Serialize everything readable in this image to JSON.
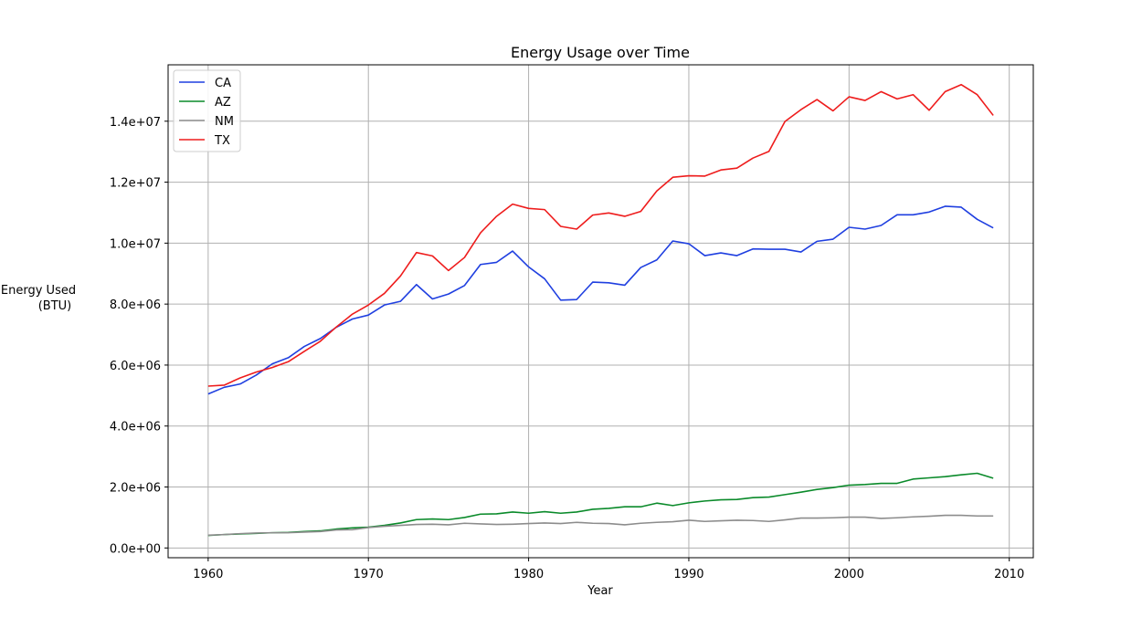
{
  "chart_data": {
    "type": "line",
    "title": "Energy Usage over Time",
    "xlabel": "Year",
    "ylabel_line1": "Energy Used",
    "ylabel_line2": "(BTU)",
    "xlim": [
      1957.5,
      2011.5
    ],
    "ylim": [
      -320000,
      15850000
    ],
    "xticks": [
      1960,
      1970,
      1980,
      1990,
      2000,
      2010
    ],
    "xtick_labels": [
      "1960",
      "1970",
      "1980",
      "1990",
      "2000",
      "2010"
    ],
    "yticks": [
      0,
      2000000,
      4000000,
      6000000,
      8000000,
      10000000,
      12000000,
      14000000
    ],
    "ytick_labels": [
      "0.0e+00",
      "2.0e+06",
      "4.0e+06",
      "6.0e+06",
      "8.0e+06",
      "1.0e+07",
      "1.2e+07",
      "1.4e+07"
    ],
    "grid": true,
    "legend_position": "top-left",
    "x": [
      1960,
      1961,
      1962,
      1963,
      1964,
      1965,
      1966,
      1967,
      1968,
      1969,
      1970,
      1971,
      1972,
      1973,
      1974,
      1975,
      1976,
      1977,
      1978,
      1979,
      1980,
      1981,
      1982,
      1983,
      1984,
      1985,
      1986,
      1987,
      1988,
      1989,
      1990,
      1991,
      1992,
      1993,
      1994,
      1995,
      1996,
      1997,
      1998,
      1999,
      2000,
      2001,
      2002,
      2003,
      2004,
      2005,
      2006,
      2007,
      2008,
      2009
    ],
    "series": [
      {
        "name": "CA",
        "color": "#1f3fe0",
        "values": [
          5050000,
          5270000,
          5380000,
          5670000,
          6040000,
          6240000,
          6610000,
          6870000,
          7240000,
          7510000,
          7640000,
          7970000,
          8090000,
          8640000,
          8170000,
          8330000,
          8610000,
          9300000,
          9370000,
          9740000,
          9220000,
          8830000,
          8130000,
          8150000,
          8720000,
          8700000,
          8620000,
          9200000,
          9450000,
          10070000,
          9980000,
          9590000,
          9680000,
          9590000,
          9810000,
          9800000,
          9800000,
          9710000,
          10060000,
          10130000,
          10520000,
          10460000,
          10580000,
          10930000,
          10930000,
          11020000,
          11210000,
          11180000,
          10780000,
          10500000
        ]
      },
      {
        "name": "AZ",
        "color": "#0a8a2a",
        "values": [
          410000,
          440000,
          460000,
          480000,
          500000,
          510000,
          540000,
          560000,
          620000,
          660000,
          680000,
          740000,
          820000,
          930000,
          950000,
          930000,
          1000000,
          1110000,
          1120000,
          1180000,
          1140000,
          1190000,
          1140000,
          1180000,
          1270000,
          1300000,
          1350000,
          1350000,
          1470000,
          1390000,
          1480000,
          1540000,
          1580000,
          1590000,
          1650000,
          1670000,
          1750000,
          1830000,
          1920000,
          1980000,
          2060000,
          2080000,
          2120000,
          2120000,
          2260000,
          2300000,
          2340000,
          2400000,
          2450000,
          2290000
        ]
      },
      {
        "name": "NM",
        "color": "#8c8c8c",
        "values": [
          420000,
          440000,
          470000,
          490000,
          500000,
          500000,
          520000,
          540000,
          590000,
          600000,
          670000,
          710000,
          740000,
          770000,
          780000,
          760000,
          810000,
          790000,
          770000,
          780000,
          800000,
          820000,
          800000,
          840000,
          810000,
          800000,
          760000,
          810000,
          840000,
          860000,
          910000,
          870000,
          890000,
          910000,
          900000,
          870000,
          920000,
          980000,
          980000,
          990000,
          1010000,
          1010000,
          970000,
          990000,
          1020000,
          1040000,
          1070000,
          1070000,
          1050000,
          1050000
        ]
      },
      {
        "name": "TX",
        "color": "#ee1c1c",
        "values": [
          5310000,
          5340000,
          5580000,
          5770000,
          5920000,
          6110000,
          6450000,
          6780000,
          7250000,
          7670000,
          7970000,
          8350000,
          8920000,
          9690000,
          9580000,
          9100000,
          9530000,
          10340000,
          10880000,
          11280000,
          11140000,
          11100000,
          10550000,
          10460000,
          10920000,
          10990000,
          10880000,
          11040000,
          11710000,
          12160000,
          12210000,
          12200000,
          12400000,
          12460000,
          12790000,
          13010000,
          13990000,
          14380000,
          14710000,
          14340000,
          14800000,
          14680000,
          14970000,
          14730000,
          14870000,
          14360000,
          14970000,
          15200000,
          14870000,
          14190000
        ]
      }
    ]
  }
}
